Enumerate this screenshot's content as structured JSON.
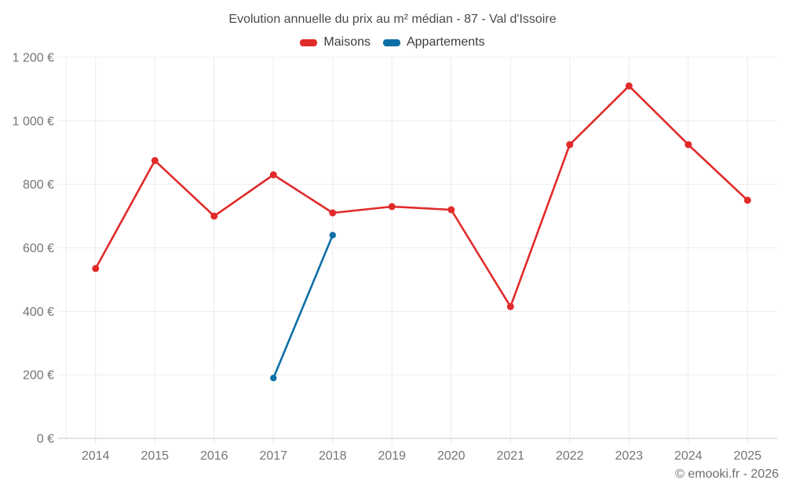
{
  "title": "Evolution annuelle du prix au m² médian - 87 - Val d'Issoire",
  "footer": "© emooki.fr - 2026",
  "colors": {
    "maisons": "#e12a2a",
    "appartements": "#0e6fa6",
    "grid": "#ececec",
    "axis": "#cfcfcf",
    "tick_label": "#757575",
    "title_text": "#4a4a4a"
  },
  "chart_data": {
    "type": "line",
    "title": "Evolution annuelle du prix au m² médian - 87 - Val d'Issoire",
    "x": [
      2014,
      2015,
      2016,
      2017,
      2018,
      2019,
      2020,
      2021,
      2022,
      2023,
      2024,
      2025
    ],
    "series": [
      {
        "name": "Maisons",
        "color": "#e12a2a",
        "values": [
          535,
          875,
          700,
          830,
          710,
          730,
          720,
          415,
          925,
          1110,
          925,
          750
        ]
      },
      {
        "name": "Appartements",
        "color": "#0e6fa6",
        "values": [
          null,
          null,
          null,
          190,
          640,
          null,
          null,
          null,
          null,
          null,
          null,
          null
        ]
      }
    ],
    "xlabel": "",
    "ylabel": "",
    "ylim": [
      0,
      1200
    ],
    "ytick_step": 200,
    "ytick_suffix": " €",
    "grid": true,
    "legend_position": "top"
  }
}
